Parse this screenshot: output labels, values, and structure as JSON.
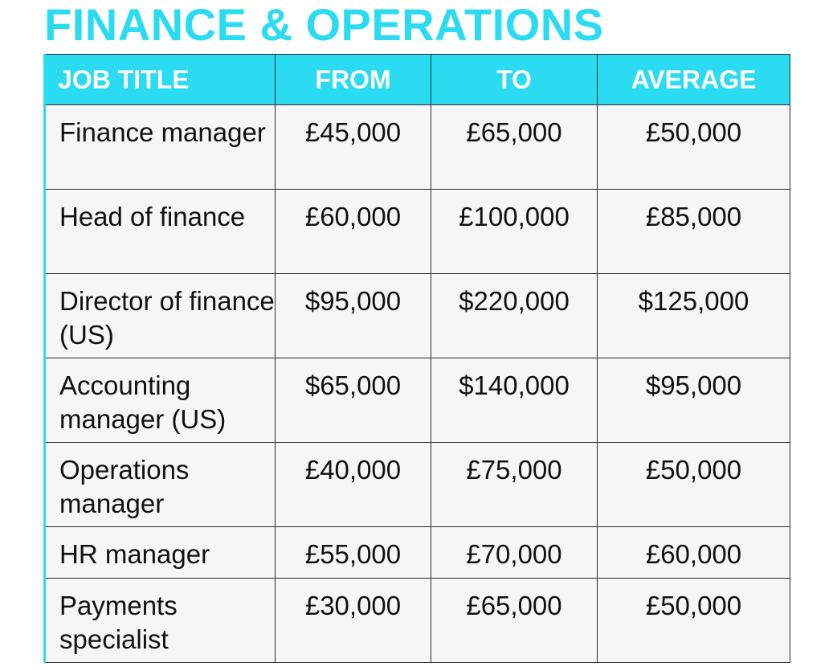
{
  "title": "FINANCE & OPERATIONS",
  "table": {
    "headers": [
      "JOB TITLE",
      "FROM",
      "TO",
      "AVERAGE"
    ],
    "rows": [
      {
        "job": "Finance manager",
        "from": "£45,000",
        "to": "£65,000",
        "average": "£50,000"
      },
      {
        "job": "Head of finance",
        "from": "£60,000",
        "to": "£100,000",
        "average": "£85,000"
      },
      {
        "job": "Director of finance (US)",
        "from": "$95,000",
        "to": "$220,000",
        "average": "$125,000"
      },
      {
        "job": "Accounting manager (US)",
        "from": "$65,000",
        "to": "$140,000",
        "average": "$95,000"
      },
      {
        "job": "Operations manager",
        "from": "£40,000",
        "to": "£75,000",
        "average": "£50,000"
      },
      {
        "job": "HR manager",
        "from": "£55,000",
        "to": "£70,000",
        "average": "£60,000"
      },
      {
        "job": "Payments specialist",
        "from": "£30,000",
        "to": "£65,000",
        "average": "£50,000"
      }
    ]
  },
  "colors": {
    "accent": "#2adbf2",
    "cell_background": "#f7f6f6",
    "border": "#2b2b2b"
  }
}
